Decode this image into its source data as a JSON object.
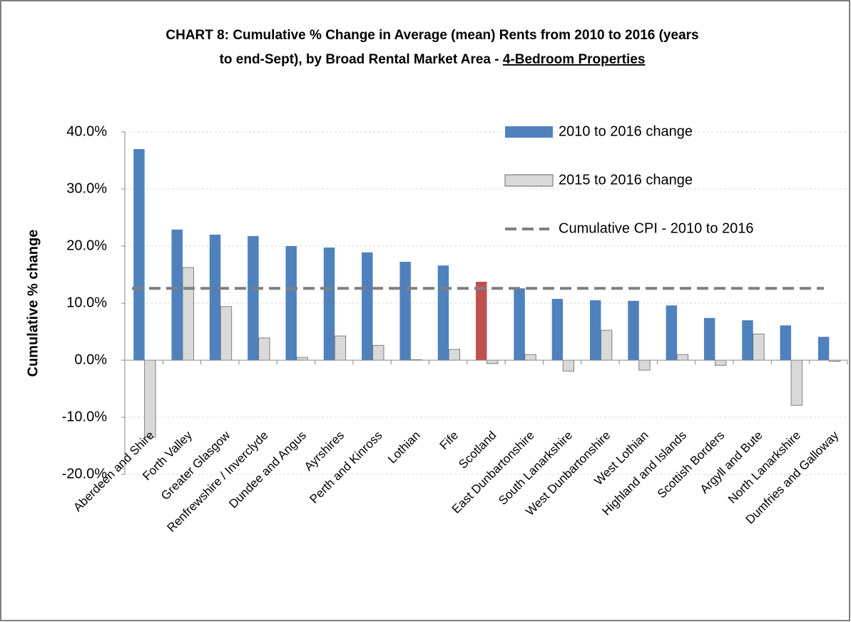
{
  "chart_data": {
    "type": "bar",
    "title": [
      "CHART 8:   Cumulative % Change in Average (mean) Rents from 2010 to 2016 (years",
      "to end-Sept), by Broad Rental Market Area -",
      "4-Bedroom Properties"
    ],
    "ylabel": "Cumulative % change",
    "categories": [
      "Aberdeen and Shire",
      "Forth Valley",
      "Greater Glasgow",
      "Renfrewshire / Inverclyde",
      "Dundee and Angus",
      "Ayrshires",
      "Perth and Kinross",
      "Lothian",
      "Fife",
      "Scotland",
      "East Dunbartonshire",
      "South Lanarkshire",
      "West Dunbartonshire",
      "West Lothian",
      "Highland and Islands",
      "Scottish Borders",
      "Argyll and Bute",
      "North Lanarkshire",
      "Dumfries and Galloway"
    ],
    "series": [
      {
        "name": "2010 to 2016 change",
        "color": "#4f81bd",
        "colors": [
          "#4f81bd",
          "#4f81bd",
          "#4f81bd",
          "#4f81bd",
          "#4f81bd",
          "#4f81bd",
          "#4f81bd",
          "#4f81bd",
          "#4f81bd",
          "#c0504d",
          "#4f81bd",
          "#4f81bd",
          "#4f81bd",
          "#4f81bd",
          "#4f81bd",
          "#4f81bd",
          "#4f81bd",
          "#4f81bd",
          "#4f81bd"
        ],
        "values": [
          37.0,
          22.9,
          22.0,
          21.75,
          20.0,
          19.75,
          18.9,
          17.25,
          16.6,
          13.75,
          12.6,
          10.75,
          10.5,
          10.4,
          9.6,
          7.4,
          7.0,
          6.1,
          4.1
        ]
      },
      {
        "name": "2015 to 2016 change",
        "color": "#d9d9d9",
        "values": [
          -13.5,
          16.25,
          9.4,
          3.9,
          0.5,
          4.25,
          2.6,
          0.1,
          1.9,
          -0.6,
          1.0,
          -1.9,
          5.25,
          -1.75,
          1.0,
          -0.9,
          4.6,
          -7.9,
          -0.2
        ]
      }
    ],
    "reference_lines": [
      {
        "name": "Cumulative CPI - 2010 to 2016",
        "value": 12.6,
        "color": "#808080",
        "dashed": true
      }
    ],
    "ylim": [
      -20,
      40
    ],
    "yticks": [
      {
        "value": -20,
        "label": "-20.0%"
      },
      {
        "value": -10,
        "label": "-10.0%"
      },
      {
        "value": 0,
        "label": "0.0%"
      },
      {
        "value": 10,
        "label": "10.0%"
      },
      {
        "value": 20,
        "label": "20.0%"
      },
      {
        "value": 30,
        "label": "30.0%"
      },
      {
        "value": 40,
        "label": "40.0%"
      }
    ],
    "grid": true,
    "legend": "top-right"
  }
}
